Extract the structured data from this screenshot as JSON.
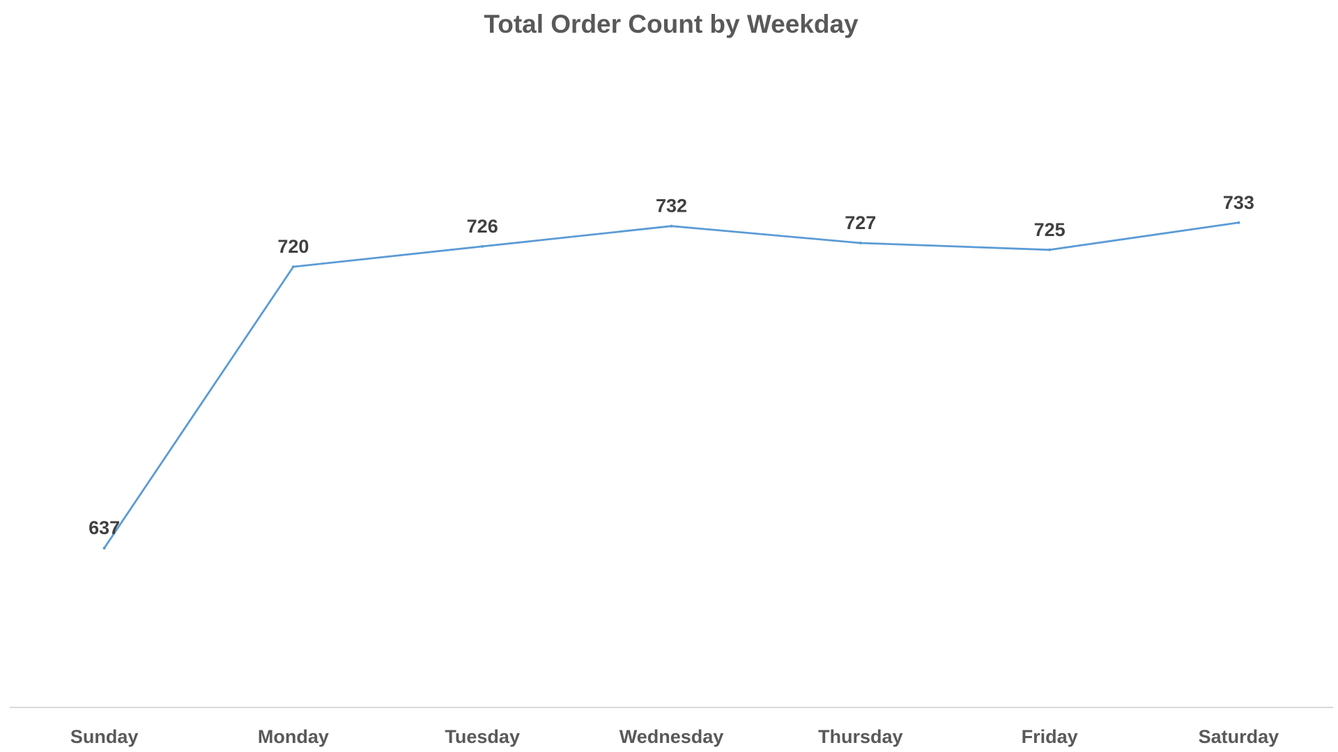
{
  "chart_data": {
    "type": "line",
    "title": "Total Order Count by Weekday",
    "xlabel": "",
    "ylabel": "",
    "categories": [
      "Sunday",
      "Monday",
      "Tuesday",
      "Wednesday",
      "Thursday",
      "Friday",
      "Saturday"
    ],
    "series": [
      {
        "values": [
          637,
          720,
          726,
          732,
          727,
          725,
          733
        ],
        "color": "#5B9BD5"
      }
    ],
    "data_labels": [
      "637",
      "720",
      "726",
      "732",
      "727",
      "725",
      "733"
    ],
    "ylim": [
      590,
      780
    ],
    "grid": false,
    "legend": "none",
    "colors": {
      "title": "#595959",
      "tick_labels": "#595959",
      "data_labels": "#404040",
      "axis_line": "#D9D9D9"
    }
  }
}
